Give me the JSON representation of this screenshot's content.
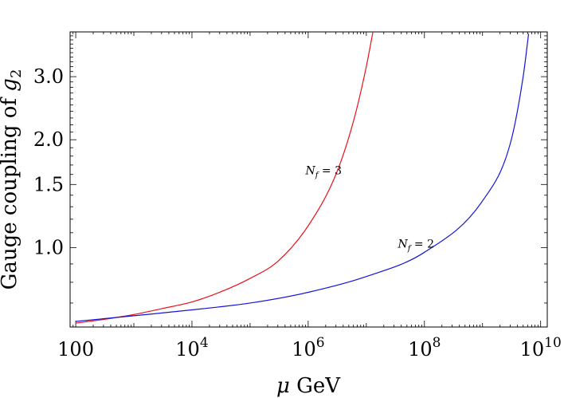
{
  "chart_data": {
    "type": "line",
    "title": "",
    "xlabel": "μ GeV",
    "ylabel": "Gauge coupling of g2",
    "xscale": "log",
    "yscale": "log",
    "xlim": [
      80,
      13000000000
    ],
    "ylim": [
      0.6,
      4.0
    ],
    "grid": false,
    "x_ticks": [
      {
        "value": 100,
        "label": "100"
      },
      {
        "value": 10000,
        "label": "10^4"
      },
      {
        "value": 1000000,
        "label": "10^6"
      },
      {
        "value": 100000000,
        "label": "10^8"
      },
      {
        "value": 10000000000,
        "label": "10^10"
      }
    ],
    "y_ticks": [
      {
        "value": 1.0,
        "label": "1.0"
      },
      {
        "value": 1.5,
        "label": "1.5"
      },
      {
        "value": 2.0,
        "label": "2.0"
      },
      {
        "value": 3.0,
        "label": "3.0"
      }
    ],
    "series": [
      {
        "name": "N_f = 3",
        "color": "#e8141c",
        "points": [
          [
            100,
            0.615
          ],
          [
            300,
            0.63
          ],
          [
            1000,
            0.65
          ],
          [
            3000,
            0.675
          ],
          [
            10000,
            0.705
          ],
          [
            30000,
            0.75
          ],
          [
            100000,
            0.82
          ],
          [
            300000,
            0.915
          ],
          [
            1000000,
            1.15
          ],
          [
            3000000,
            1.6
          ],
          [
            6000000,
            2.25
          ],
          [
            10000000,
            3.2
          ],
          [
            13000000,
            4.0
          ]
        ]
      },
      {
        "name": "N_f = 2",
        "color": "#1414d8",
        "points": [
          [
            100,
            0.622
          ],
          [
            1000,
            0.645
          ],
          [
            10000,
            0.67
          ],
          [
            100000,
            0.7
          ],
          [
            1000000,
            0.75
          ],
          [
            10000000,
            0.83
          ],
          [
            100000000,
            0.97
          ],
          [
            1000000000,
            1.35
          ],
          [
            3000000000,
            1.95
          ],
          [
            5000000000,
            3.0
          ],
          [
            6200000000,
            3.95
          ]
        ]
      }
    ],
    "annotations": [
      {
        "series": "N_f = 3",
        "italic_part": "N",
        "subscript": "f",
        "rest": " = 3",
        "x": 900000,
        "y": 1.6
      },
      {
        "series": "N_f = 2",
        "italic_part": "N",
        "subscript": "f",
        "rest": " = 2",
        "x": 35000000,
        "y": 1.0
      }
    ]
  }
}
